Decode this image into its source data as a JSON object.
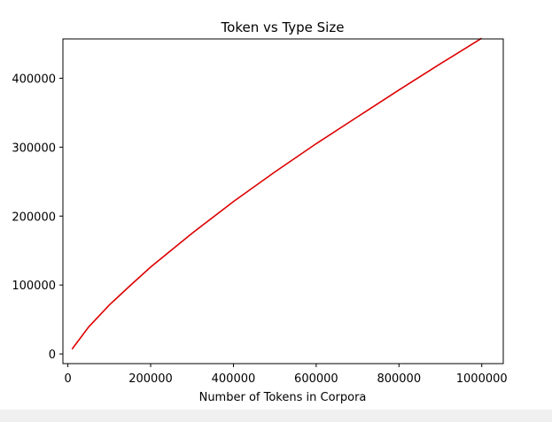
{
  "chart_data": {
    "type": "line",
    "title": "Token vs Type Size",
    "xlabel": "Number of Tokens in Corpora",
    "ylabel": "",
    "xlim": [
      -12000,
      1052000
    ],
    "ylim": [
      -14000,
      457000
    ],
    "xticks": [
      0,
      200000,
      400000,
      600000,
      800000,
      1000000
    ],
    "yticks": [
      0,
      100000,
      200000,
      300000,
      400000
    ],
    "grid": false,
    "line_color": "#dd0000",
    "series": [
      {
        "name": "",
        "x": [
          10000,
          50000,
          100000,
          150000,
          200000,
          300000,
          400000,
          500000,
          600000,
          700000,
          800000,
          900000,
          1000000
        ],
        "y": [
          7000,
          39000,
          71000,
          99000,
          126000,
          175000,
          221000,
          264000,
          305000,
          344000,
          383000,
          421000,
          458000
        ]
      }
    ]
  },
  "page": {
    "bottom_strip_color": "#f0f0f0"
  }
}
